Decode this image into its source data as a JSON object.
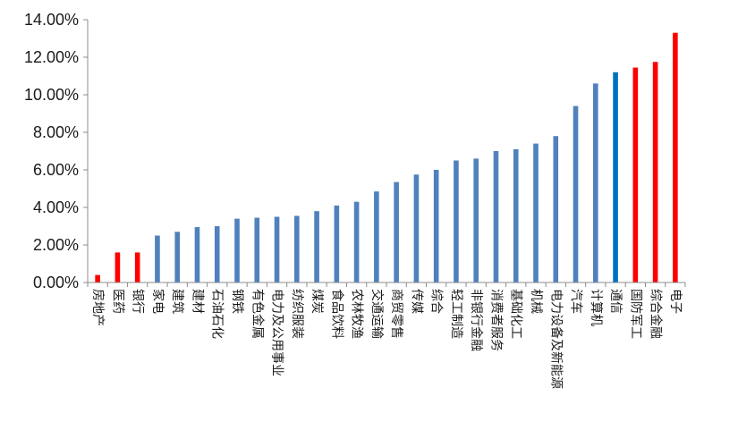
{
  "chart_data": {
    "type": "bar",
    "title": "",
    "xlabel": "",
    "ylabel": "",
    "ylim": [
      0,
      14
    ],
    "yticks": [
      "0.00%",
      "2.00%",
      "4.00%",
      "6.00%",
      "8.00%",
      "10.00%",
      "12.00%",
      "14.00%"
    ],
    "grid": false,
    "legend": "none",
    "colors": {
      "default": "#4F81BD",
      "red": "#FF0000",
      "dark_blue": "#0070C0"
    },
    "categories": [
      "房地产",
      "医药",
      "银行",
      "家电",
      "建筑",
      "建材",
      "石油石化",
      "钢铁",
      "有色金属",
      "电力及公用事业",
      "纺织服装",
      "煤炭",
      "食品饮料",
      "农林牧渔",
      "交通运输",
      "商贸零售",
      "传媒",
      "综合",
      "轻工制造",
      "非银行金融",
      "消费者服务",
      "基础化工",
      "机械",
      "电力设备及新能源",
      "汽车",
      "计算机",
      "通信",
      "国防军工",
      "综合金融",
      "电子"
    ],
    "values": [
      0.4,
      1.6,
      1.6,
      2.5,
      2.7,
      2.95,
      3.0,
      3.4,
      3.45,
      3.5,
      3.55,
      3.8,
      4.1,
      4.3,
      4.85,
      5.35,
      5.75,
      6.0,
      6.5,
      6.6,
      7.0,
      7.1,
      7.4,
      7.8,
      9.4,
      10.6,
      11.2,
      11.45,
      11.75,
      13.3
    ],
    "bar_colors": [
      "red",
      "red",
      "red",
      "default",
      "default",
      "default",
      "default",
      "default",
      "default",
      "default",
      "default",
      "default",
      "default",
      "default",
      "default",
      "default",
      "default",
      "default",
      "default",
      "default",
      "default",
      "default",
      "default",
      "default",
      "default",
      "default",
      "dark_blue",
      "red",
      "red",
      "red"
    ]
  }
}
